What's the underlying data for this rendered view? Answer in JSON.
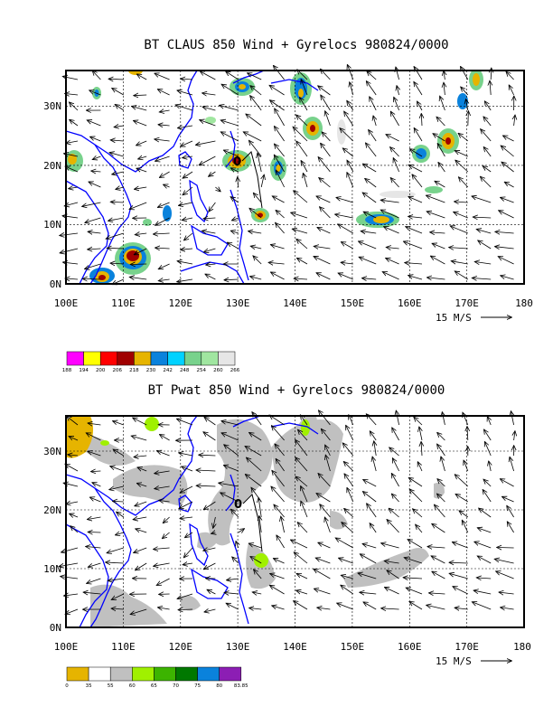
{
  "panels": [
    {
      "title": "BT CLAUS 850 Wind + Gyrelocs 980824/0000",
      "x_ticks": [
        "100E",
        "110E",
        "120E",
        "130E",
        "140E",
        "150E",
        "160E",
        "170E",
        "180"
      ],
      "y_ticks": [
        "0N",
        "10N",
        "20N",
        "30N"
      ],
      "ref_vector_label": "15 M/S",
      "colorbar": {
        "labels": [
          "188",
          "194",
          "200",
          "206",
          "218",
          "230",
          "242",
          "248",
          "254",
          "260",
          "266"
        ],
        "colors": [
          "#ff00ff",
          "#ffff00",
          "#ff0000",
          "#a00000",
          "#e6b400",
          "#0a82dc",
          "#00d2ff",
          "#78d28c",
          "#a0e6a0",
          "#e6e6e6"
        ]
      }
    },
    {
      "title": "BT Pwat 850 Wind + Gyrelocs 980824/0000",
      "x_ticks": [
        "100E",
        "110E",
        "120E",
        "130E",
        "140E",
        "150E",
        "160E",
        "170E",
        "180"
      ],
      "y_ticks": [
        "0N",
        "10N",
        "20N",
        "30N"
      ],
      "ref_vector_label": "15 M/S",
      "colorbar": {
        "labels": [
          "0",
          "35",
          "55",
          "60",
          "65",
          "70",
          "75",
          "80",
          "83.85"
        ],
        "colors": [
          "#e6b400",
          "#ffffff",
          "#c0c0c0",
          "#a0f000",
          "#3cb400",
          "#007800",
          "#0a82dc",
          "#8c1eb4"
        ]
      }
    }
  ],
  "map": {
    "lon_range": [
      100,
      180
    ],
    "lat_range": [
      0,
      36
    ],
    "coastline_color": "#0000ff",
    "grid": "dotted"
  }
}
